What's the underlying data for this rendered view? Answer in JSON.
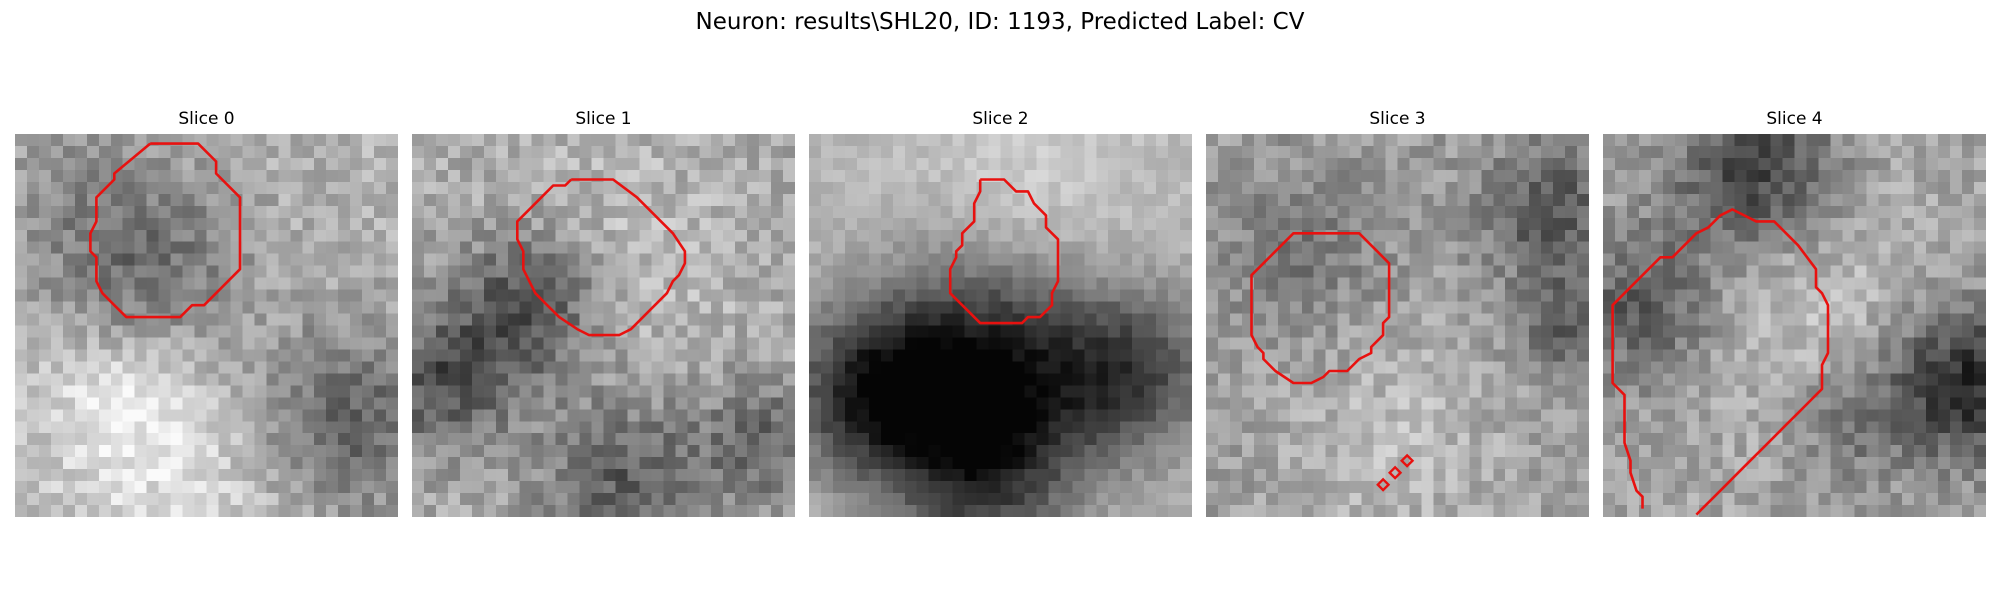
{
  "figure": {
    "title": "Neuron: results\\SHL20, ID: 1193, Predicted Label: CV"
  },
  "panels": [
    {
      "title": "Slice 0"
    },
    {
      "title": "Slice 1"
    },
    {
      "title": "Slice 2"
    },
    {
      "title": "Slice 3"
    },
    {
      "title": "Slice 4"
    }
  ],
  "colors": {
    "contour": "#e8110f",
    "background": "#ffffff"
  }
}
